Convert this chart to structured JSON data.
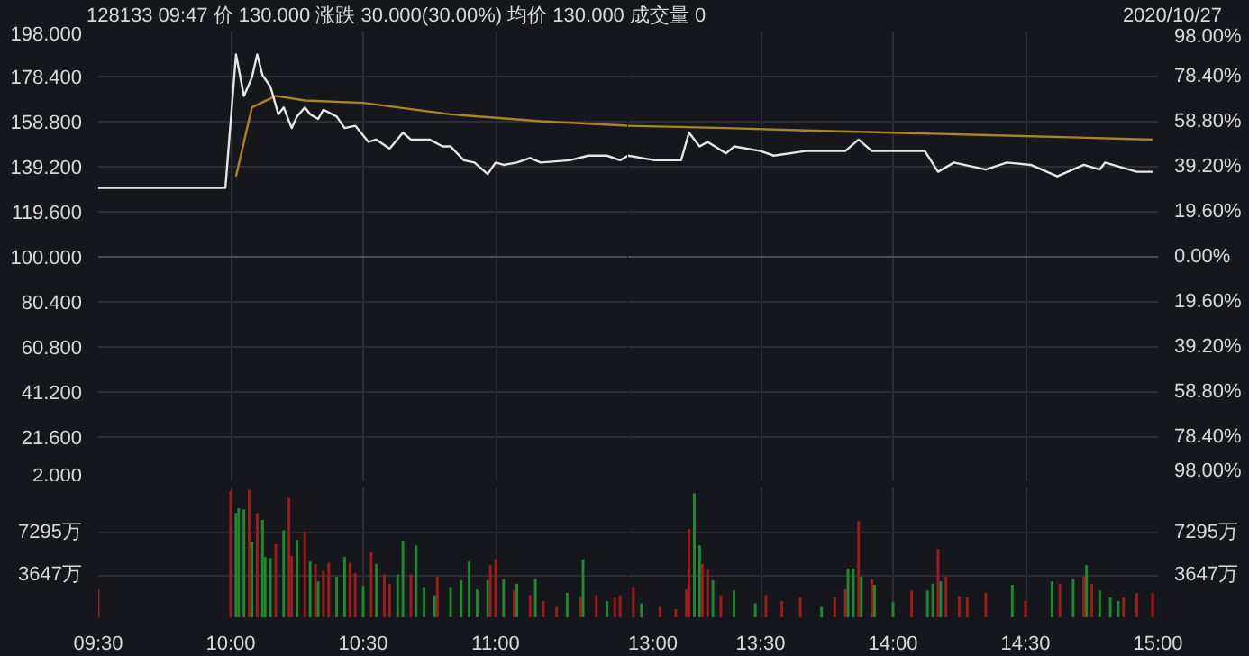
{
  "chart_data": [
    {
      "type": "line",
      "title": "128133 09:47 价 130.000 涨跌 30.000(30.00%) 均价 130.000 成交量 0",
      "annotations": [
        "2020/10/27"
      ],
      "xlim": [
        9.5,
        11.5
      ],
      "xticks": [
        9.5,
        10,
        10.5,
        11
      ],
      "tick_labels": "y",
      "grid": true,
      "ylim": [
        2,
        198
      ],
      "yticks": [
        {
          "value": 198,
          "label": "198.000"
        },
        {
          "value": 178.4,
          "label": "178.400"
        },
        {
          "value": 158.8,
          "label": "158.800"
        },
        {
          "value": 139.2,
          "label": "139.200"
        },
        {
          "value": 119.6,
          "label": "119.600"
        },
        {
          "value": 100,
          "label": "100.000"
        },
        {
          "value": 80.4,
          "label": "80.400"
        },
        {
          "value": 60.8,
          "label": "60.800"
        },
        {
          "value": 41.2,
          "label": "41.200"
        },
        {
          "value": 21.6,
          "label": "21.600"
        },
        {
          "value": 2,
          "label": "2.000"
        }
      ],
      "ref_lines": [
        {
          "axis": "y",
          "value": 100,
          "color": "#4a4d55"
        }
      ],
      "series": [
        {
          "color": "#a88620",
          "x": [
            10.02,
            10.08,
            10.17,
            10.28,
            10.5,
            10.83,
            11.17,
            11.5
          ],
          "values": [
            135,
            165,
            170,
            168,
            167,
            162,
            159,
            157
          ]
        },
        {
          "color": "#e6e6e6",
          "x": [
            9.5,
            9.98,
            10.02,
            10.05,
            10.08,
            10.1,
            10.12,
            10.15,
            10.18,
            10.2,
            10.23,
            10.25,
            10.28,
            10.3,
            10.33,
            10.35,
            10.4,
            10.43,
            10.47,
            10.52,
            10.55,
            10.6,
            10.65,
            10.68,
            10.75,
            10.8,
            10.83,
            10.88,
            10.92,
            10.97,
            11,
            11.03,
            11.08,
            11.13,
            11.17,
            11.28,
            11.35,
            11.42,
            11.47,
            11.5
          ],
          "values": [
            130,
            130,
            188,
            170,
            178,
            188,
            179,
            174,
            162,
            165,
            156,
            161,
            165,
            162,
            160,
            164,
            161,
            156,
            157,
            150,
            151,
            147,
            154,
            151,
            151,
            148,
            148,
            142,
            141,
            136,
            141,
            140,
            141,
            143,
            141,
            142,
            144,
            144,
            142,
            144
          ]
        }
      ]
    },
    {
      "type": "line",
      "xlim": [
        13,
        15
      ],
      "xticks": [
        13,
        13.5,
        14,
        14.5,
        15
      ],
      "tick_labels": "y",
      "grid": true,
      "ylim": [
        2,
        198
      ],
      "y2lim": [
        -98,
        98
      ],
      "y2ticks": [
        {
          "value": 98,
          "label": "98.00%"
        },
        {
          "value": 78.4,
          "label": "78.40%"
        },
        {
          "value": 58.8,
          "label": "58.80%"
        },
        {
          "value": 39.2,
          "label": "39.20%"
        },
        {
          "value": 19.6,
          "label": "19.60%"
        },
        {
          "value": 0,
          "label": "0.00%"
        },
        {
          "value": -19.6,
          "label": "19.60%"
        },
        {
          "value": -39.2,
          "label": "39.20%"
        },
        {
          "value": -58.8,
          "label": "58.80%"
        },
        {
          "value": -78.4,
          "label": "78.40%"
        },
        {
          "value": -98,
          "label": "98.00%"
        }
      ],
      "ref_lines": [
        {
          "axis": "y",
          "value": 100,
          "color": "#4a4d55"
        }
      ],
      "series": [
        {
          "color": "#a88620",
          "x": [
            13,
            13.37,
            13.67,
            14,
            14.33,
            14.67,
            14.98
          ],
          "values": [
            157,
            156,
            155,
            154,
            153,
            152,
            151
          ]
        },
        {
          "color": "#e6e6e6",
          "x": [
            13,
            13.1,
            13.2,
            13.23,
            13.27,
            13.3,
            13.37,
            13.4,
            13.5,
            13.55,
            13.67,
            13.82,
            13.87,
            13.92,
            14.02,
            14.12,
            14.17,
            14.23,
            14.35,
            14.43,
            14.52,
            14.62,
            14.72,
            14.78,
            14.8,
            14.92,
            14.98
          ],
          "values": [
            144,
            142,
            142,
            154,
            148,
            150,
            145,
            148,
            146,
            144,
            146,
            146,
            151,
            146,
            146,
            146,
            137,
            141,
            138,
            141,
            140,
            135,
            140,
            138,
            141,
            137,
            137
          ]
        }
      ]
    },
    {
      "type": "bar",
      "xlim": [
        9.5,
        11.5
      ],
      "xticks": [
        {
          "value": 9.5,
          "label": "09:30"
        },
        {
          "value": 10,
          "label": "10:00"
        },
        {
          "value": 10.5,
          "label": "10:30"
        },
        {
          "value": 11,
          "label": "11:00"
        }
      ],
      "grid": true,
      "ylim": [
        0,
        11200
      ],
      "yticks": [
        {
          "value": 3647,
          "label": "3647万"
        },
        {
          "value": 7295,
          "label": "7295万"
        }
      ],
      "x": [
        9.5,
        10,
        10.02,
        10.03,
        10.05,
        10.07,
        10.08,
        10.1,
        10.12,
        10.13,
        10.15,
        10.17,
        10.2,
        10.22,
        10.23,
        10.25,
        10.28,
        10.3,
        10.32,
        10.33,
        10.35,
        10.37,
        10.4,
        10.43,
        10.45,
        10.47,
        10.5,
        10.53,
        10.55,
        10.58,
        10.6,
        10.63,
        10.65,
        10.68,
        10.7,
        10.73,
        10.77,
        10.78,
        10.83,
        10.87,
        10.9,
        10.93,
        10.97,
        10.98,
        11,
        11.03,
        11.07,
        11.08,
        11.13,
        11.15,
        11.18,
        11.23,
        11.27,
        11.32,
        11.33,
        11.38,
        11.42,
        11.45,
        11.47
      ],
      "values": [
        2400,
        10900,
        9000,
        9400,
        9300,
        11000,
        6500,
        9000,
        8400,
        5200,
        5100,
        6300,
        7500,
        10300,
        5300,
        6700,
        7400,
        4800,
        4600,
        3100,
        4000,
        4700,
        3500,
        5200,
        4700,
        3800,
        2700,
        5600,
        4600,
        3700,
        2900,
        3700,
        6600,
        3700,
        6200,
        2600,
        1900,
        3500,
        2600,
        3200,
        4800,
        2400,
        3200,
        4500,
        5000,
        3300,
        2300,
        2900,
        1900,
        3300,
        1400,
        900,
        2100,
        1800,
        5000,
        1900,
        1400,
        1700,
        1900
      ],
      "colors": [
        "#a01c1c",
        "#a01c1c",
        "#1d8a30",
        "#1d8a30",
        "#1d8a30",
        "#a01c1c",
        "#1d8a30",
        "#a01c1c",
        "#1d8a30",
        "#1d8a30",
        "#1d8a30",
        "#a01c1c",
        "#1d8a30",
        "#a01c1c",
        "#a01c1c",
        "#1d8a30",
        "#a01c1c",
        "#1d8a30",
        "#a01c1c",
        "#1d8a30",
        "#a01c1c",
        "#a01c1c",
        "#1d8a30",
        "#1d8a30",
        "#a01c1c",
        "#a01c1c",
        "#1d8a30",
        "#a01c1c",
        "#1d8a30",
        "#a01c1c",
        "#a01c1c",
        "#1d8a30",
        "#1d8a30",
        "#a01c1c",
        "#1d8a30",
        "#1d8a30",
        "#1d8a30",
        "#a01c1c",
        "#1d8a30",
        "#1d8a30",
        "#1d8a30",
        "#1d8a30",
        "#1d8a30",
        "#a01c1c",
        "#a01c1c",
        "#1d8a30",
        "#a01c1c",
        "#1d8a30",
        "#a01c1c",
        "#1d8a30",
        "#a01c1c",
        "#a01c1c",
        "#1d8a30",
        "#a01c1c",
        "#1d8a30",
        "#a01c1c",
        "#1d8a30",
        "#a01c1c",
        "#a01c1c"
      ]
    },
    {
      "type": "bar",
      "xlim": [
        13,
        15
      ],
      "xticks": [
        {
          "value": 13,
          "label": "13:00"
        },
        {
          "value": 13.5,
          "label": "13:30"
        },
        {
          "value": 14,
          "label": "14:00"
        },
        {
          "value": 14.5,
          "label": "14:30"
        },
        {
          "value": 15,
          "label": "15:00"
        }
      ],
      "grid": true,
      "ylim": [
        0,
        11200
      ],
      "y2lim": [
        0,
        11200
      ],
      "y2ticks": [
        {
          "value": 3647,
          "label": "3647万"
        },
        {
          "value": 7295,
          "label": "7295万"
        }
      ],
      "x": [
        13.02,
        13.05,
        13.12,
        13.18,
        13.22,
        13.23,
        13.25,
        13.27,
        13.28,
        13.3,
        13.32,
        13.35,
        13.4,
        13.48,
        13.52,
        13.58,
        13.65,
        13.73,
        13.78,
        13.82,
        13.83,
        13.85,
        13.87,
        13.88,
        13.92,
        13.93,
        14,
        14.07,
        14.13,
        14.15,
        14.17,
        14.18,
        14.2,
        14.25,
        14.28,
        14.35,
        14.45,
        14.5,
        14.6,
        14.63,
        14.68,
        14.72,
        14.73,
        14.75,
        14.78,
        14.82,
        14.85,
        14.87,
        14.92,
        14.98
      ],
      "values": [
        2600,
        1200,
        900,
        700,
        2400,
        7600,
        10700,
        6200,
        4600,
        4100,
        3200,
        1900,
        2300,
        1200,
        1900,
        1400,
        1700,
        900,
        1700,
        2400,
        4200,
        4200,
        8300,
        3500,
        3300,
        2800,
        1300,
        2300,
        2300,
        2900,
        5900,
        3100,
        3500,
        1800,
        1700,
        2100,
        2800,
        1400,
        3100,
        2900,
        3300,
        3500,
        4500,
        2900,
        2300,
        1700,
        1400,
        1700,
        2100,
        2100
      ],
      "colors": [
        "#a01c1c",
        "#1d8a30",
        "#a01c1c",
        "#a01c1c",
        "#a01c1c",
        "#a01c1c",
        "#1d8a30",
        "#1d8a30",
        "#a01c1c",
        "#a01c1c",
        "#1d8a30",
        "#a01c1c",
        "#1d8a30",
        "#1d8a30",
        "#a01c1c",
        "#a01c1c",
        "#a01c1c",
        "#1d8a30",
        "#a01c1c",
        "#a01c1c",
        "#1d8a30",
        "#1d8a30",
        "#a01c1c",
        "#1d8a30",
        "#a01c1c",
        "#1d8a30",
        "#1d8a30",
        "#a01c1c",
        "#1d8a30",
        "#1d8a30",
        "#a01c1c",
        "#1d8a30",
        "#a01c1c",
        "#a01c1c",
        "#a01c1c",
        "#a01c1c",
        "#1d8a30",
        "#a01c1c",
        "#1d8a30",
        "#a01c1c",
        "#1d8a30",
        "#a01c1c",
        "#1d8a30",
        "#a01c1c",
        "#1d8a30",
        "#1d8a30",
        "#1d8a30",
        "#a01c1c",
        "#a01c1c",
        "#a01c1c"
      ]
    }
  ]
}
